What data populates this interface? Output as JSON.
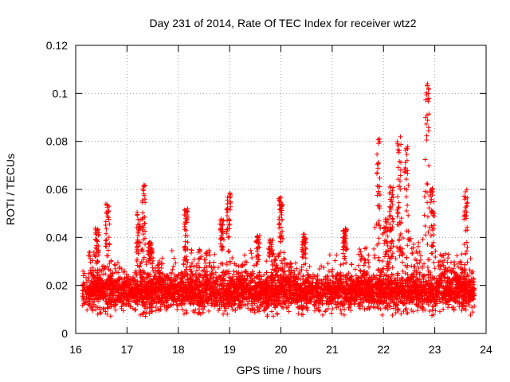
{
  "chart_data": {
    "type": "scatter",
    "title": "Day 231 of 2014, Rate Of TEC Index for receiver wtz2",
    "xlabel": "GPS time / hours",
    "ylabel": "ROTI / TECUs",
    "xlim": [
      16,
      24
    ],
    "ylim": [
      0,
      0.12
    ],
    "xticks": [
      16,
      17,
      18,
      19,
      20,
      21,
      22,
      23,
      24
    ],
    "yticks": [
      0,
      0.02,
      0.04,
      0.06,
      0.08,
      0.1,
      0.12
    ],
    "xtick_labels": [
      "16",
      "17",
      "18",
      "19",
      "20",
      "21",
      "22",
      "23",
      "24"
    ],
    "ytick_labels": [
      "0",
      "0.02",
      "0.04",
      "0.06",
      "0.08",
      "0.1",
      "0.12"
    ],
    "grid": true,
    "marker": "plus",
    "series": [
      {
        "name": "ROTI",
        "color": "#ff0000",
        "time_range": [
          16.13,
          23.77
        ],
        "baseline_range": [
          0.007,
          0.028
        ],
        "bursts": [
          {
            "t": 16.42,
            "peak": 0.044
          },
          {
            "t": 16.62,
            "peak": 0.054
          },
          {
            "t": 17.22,
            "peak": 0.051
          },
          {
            "t": 17.32,
            "peak": 0.062
          },
          {
            "t": 17.45,
            "peak": 0.038
          },
          {
            "t": 18.15,
            "peak": 0.052
          },
          {
            "t": 18.85,
            "peak": 0.048
          },
          {
            "t": 18.98,
            "peak": 0.059
          },
          {
            "t": 19.55,
            "peak": 0.041
          },
          {
            "t": 19.8,
            "peak": 0.039
          },
          {
            "t": 20.0,
            "peak": 0.057
          },
          {
            "t": 20.45,
            "peak": 0.042
          },
          {
            "t": 21.25,
            "peak": 0.044
          },
          {
            "t": 21.9,
            "peak": 0.082
          },
          {
            "t": 22.05,
            "peak": 0.048
          },
          {
            "t": 22.15,
            "peak": 0.062
          },
          {
            "t": 22.3,
            "peak": 0.082
          },
          {
            "t": 22.45,
            "peak": 0.078
          },
          {
            "t": 22.85,
            "peak": 0.105
          },
          {
            "t": 22.95,
            "peak": 0.062
          },
          {
            "t": 23.6,
            "peak": 0.06
          }
        ]
      }
    ]
  }
}
